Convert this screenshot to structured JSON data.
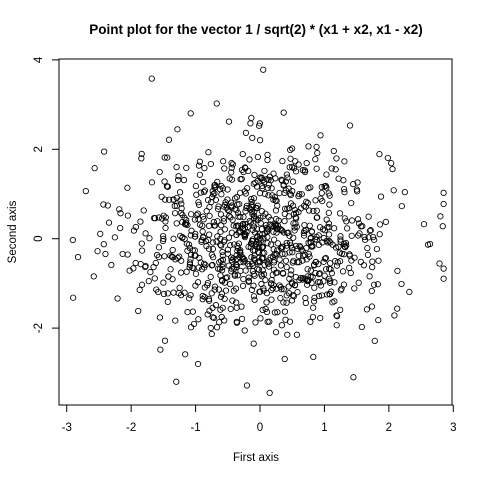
{
  "chart_data": {
    "type": "scatter",
    "title": "Point plot for the vector 1 / sqrt(2) * (x1 + x2, x1 - x2)",
    "xlabel": "First axis",
    "ylabel": "Second axis",
    "xlim": [
      -3.12,
      2.98
    ],
    "ylim": [
      -3.72,
      4.02
    ],
    "x_ticks": [
      -3,
      -2,
      -1,
      0,
      1,
      2,
      3
    ],
    "y_ticks": [
      -2,
      0,
      2,
      4
    ],
    "marker": "open-circle",
    "point_count": 1000,
    "highlighted_points": [
      {
        "x": 0.05,
        "y": 3.78
      },
      {
        "x": -1.68,
        "y": 3.58
      },
      {
        "x": -2.9,
        "y": -1.32
      },
      {
        "x": 2.8,
        "y": 0.5
      },
      {
        "x": 1.45,
        "y": -3.1
      },
      {
        "x": 0.15,
        "y": -3.45
      },
      {
        "x": -1.3,
        "y": -3.2
      }
    ],
    "grid": false,
    "legend": "none"
  }
}
